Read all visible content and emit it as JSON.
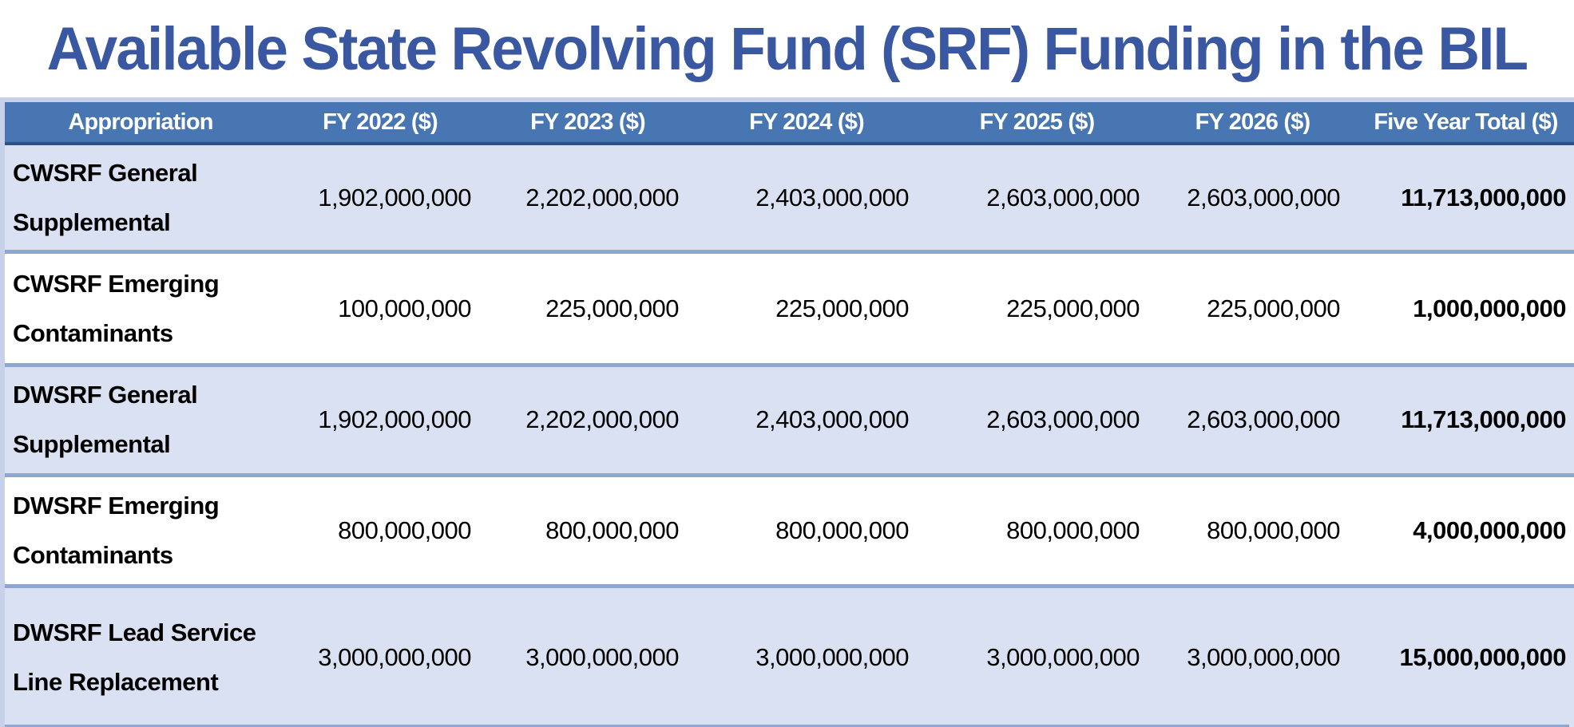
{
  "title": "Available State Revolving Fund (SRF) Funding in the BIL",
  "colors": {
    "title_color": "#3A58A2",
    "header_bg": "#4876B2",
    "header_text": "#FFFFFF",
    "row_alt_bg": "#DAE1F2",
    "row_bg": "#FFFFFF",
    "divider": "#8FA6D1",
    "outer_border": "#C7D1EA",
    "header_bottom": "#2E5286",
    "cell_text": "#000000"
  },
  "table": {
    "columns": [
      "Appropriation",
      "FY 2022 ($)",
      "FY 2023 ($)",
      "FY 2024 ($)",
      "FY 2025 ($)",
      "FY 2026 ($)",
      "Five Year Total ($)"
    ],
    "rows": [
      {
        "appropriation": "CWSRF General Supplemental",
        "values": [
          "1,902,000,000",
          "2,202,000,000",
          "2,403,000,000",
          "2,603,000,000",
          "2,603,000,000"
        ],
        "total": "11,713,000,000"
      },
      {
        "appropriation": "CWSRF Emerging Contaminants",
        "values": [
          "100,000,000",
          "225,000,000",
          "225,000,000",
          "225,000,000",
          "225,000,000"
        ],
        "total": "1,000,000,000"
      },
      {
        "appropriation": "DWSRF General Supplemental",
        "values": [
          "1,902,000,000",
          "2,202,000,000",
          "2,403,000,000",
          "2,603,000,000",
          "2,603,000,000"
        ],
        "total": "11,713,000,000"
      },
      {
        "appropriation": "DWSRF Emerging Contaminants",
        "values": [
          "800,000,000",
          "800,000,000",
          "800,000,000",
          "800,000,000",
          "800,000,000"
        ],
        "total": "4,000,000,000"
      },
      {
        "appropriation": "DWSRF Lead Service Line Replacement",
        "values": [
          "3,000,000,000",
          "3,000,000,000",
          "3,000,000,000",
          "3,000,000,000",
          "3,000,000,000"
        ],
        "total": "15,000,000,000"
      }
    ]
  }
}
